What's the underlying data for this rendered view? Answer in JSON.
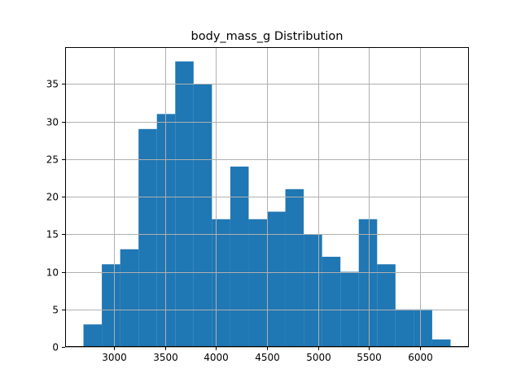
{
  "chart_data": {
    "type": "bar",
    "title": "body_mass_g Distribution",
    "xlabel": "",
    "ylabel": "",
    "bin_edges": [
      2700,
      2880,
      3060,
      3240,
      3420,
      3600,
      3780,
      3960,
      4140,
      4320,
      4500,
      4680,
      4860,
      5040,
      5220,
      5400,
      5580,
      5760,
      5940,
      6120,
      6300
    ],
    "values": [
      3,
      11,
      13,
      29,
      31,
      38,
      35,
      17,
      24,
      17,
      18,
      21,
      15,
      12,
      10,
      17,
      11,
      5,
      5,
      1
    ],
    "xlim": [
      2520,
      6480
    ],
    "ylim": [
      0,
      39.9
    ],
    "xticks": [
      3000,
      3500,
      4000,
      4500,
      5000,
      5500,
      6000
    ],
    "yticks": [
      0,
      5,
      10,
      15,
      20,
      25,
      30,
      35
    ],
    "grid": true,
    "bar_color": "#1f77b4"
  }
}
